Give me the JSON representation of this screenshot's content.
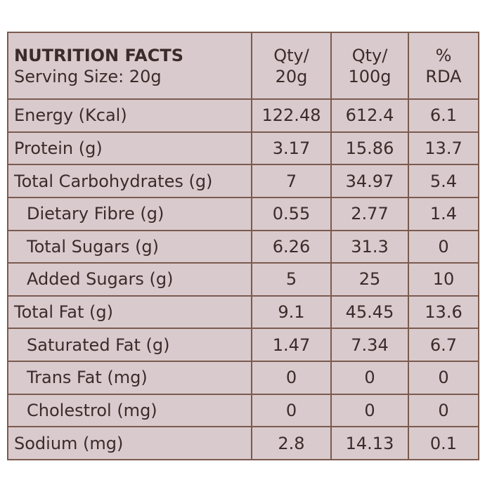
{
  "header": {
    "title": "NUTRITION FACTS",
    "serving_size": "Serving Size: 20g",
    "columns": [
      [
        "Qty/",
        "20g"
      ],
      [
        "Qty/",
        "100g"
      ],
      [
        "%",
        "RDA"
      ]
    ]
  },
  "rows": [
    [
      "Energy (Kcal)",
      122.48,
      612.4,
      6.1
    ],
    [
      "Protein (g)",
      3.17,
      15.86,
      13.7
    ],
    [
      "Total Carbohydrates (g)",
      7,
      34.97,
      5.4
    ],
    [
      "Dietary Fibre (g)",
      0.55,
      2.77,
      1.4
    ],
    [
      "Total Sugars (g)",
      6.26,
      31.3,
      0
    ],
    [
      "Added Sugars (g)",
      5,
      25,
      10
    ],
    [
      "Total Fat (g)",
      9.1,
      45.45,
      13.6
    ],
    [
      "Saturated Fat (g)",
      1.47,
      7.34,
      6.7
    ],
    [
      "Trans Fat (mg)",
      0,
      0,
      0
    ],
    [
      "Cholestrol (mg)",
      0,
      0,
      0
    ],
    [
      "Sodium (mg)",
      2.8,
      14.13,
      0.1
    ]
  ]
}
